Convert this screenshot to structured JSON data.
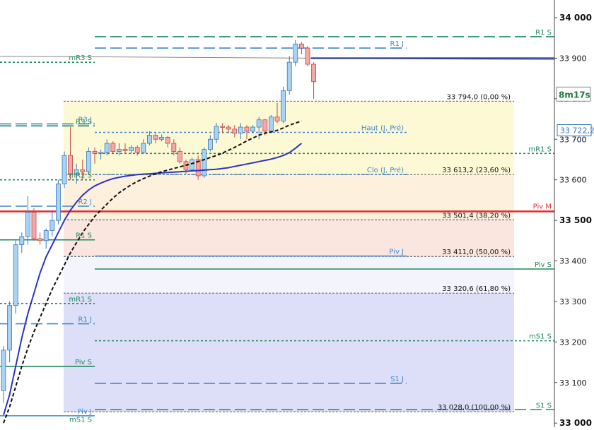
{
  "chart_data": {
    "type": "candlestick",
    "y_axis": {
      "position": "right",
      "min": 32990,
      "max": 34030,
      "ticks": [
        {
          "value": 34000,
          "label": "34 000",
          "bold": true
        },
        {
          "value": 33900,
          "label": "33 900",
          "bold": false
        },
        {
          "value": 33800,
          "label": "33 800",
          "bold": false
        },
        {
          "value": 33700,
          "label": "33 700",
          "bold": false
        },
        {
          "value": 33600,
          "label": "33 600",
          "bold": false
        },
        {
          "value": 33500,
          "label": "33 500",
          "bold": true
        },
        {
          "value": 33400,
          "label": "33 400",
          "bold": false
        },
        {
          "value": 33300,
          "label": "33 300",
          "bold": false
        },
        {
          "value": 33200,
          "label": "33 200",
          "bold": false
        },
        {
          "value": 33100,
          "label": "33 100",
          "bold": false
        },
        {
          "value": 33000,
          "label": "33 000",
          "bold": true
        }
      ]
    },
    "timer_badge": {
      "label": "8m17s",
      "value": 33794
    },
    "price_badge": {
      "label": "33 722,2",
      "value": 33722.2
    },
    "fib_zones": [
      {
        "from": 33794.0,
        "to": 33613.2,
        "color": "#fdf9d4"
      },
      {
        "from": 33613.2,
        "to": 33501.4,
        "color": "#fdf1de"
      },
      {
        "from": 33501.4,
        "to": 33411.0,
        "color": "#fbe6df"
      },
      {
        "from": 33411.0,
        "to": 33320.6,
        "color": "#f3f4fc"
      },
      {
        "from": 33320.6,
        "to": 33028.0,
        "color": "#dcdff7"
      }
    ],
    "fib_levels": [
      {
        "value": 33794.0,
        "label": "33 794,0 (0,00 %)"
      },
      {
        "value": 33613.2,
        "label": "33 613,2 (23,60 %)"
      },
      {
        "value": 33501.4,
        "label": "33 501,4 (38,20 %)"
      },
      {
        "value": 33411.0,
        "label": "33 411,0 (50,00 %)"
      },
      {
        "value": 33320.6,
        "label": "33 320,6 (61,80 %)"
      },
      {
        "value": 33028.0,
        "label": "33 028,0 (100,00 %)"
      }
    ],
    "pivot_lines": [
      {
        "label": "R1 S",
        "value": 33953,
        "color": "#1f8a5c",
        "style": "dash-long",
        "span": "right"
      },
      {
        "label": "R1 J",
        "value": 33925,
        "color": "#3f86d6",
        "style": "dash-long",
        "span": "mid"
      },
      {
        "label": "mR3 S",
        "value": 33890,
        "color": "#1f8a5c",
        "style": "dot",
        "span": "left"
      },
      {
        "label": "R3 J",
        "value": 33738,
        "color": "#3f86d6",
        "style": "dash-long",
        "span": "left"
      },
      {
        "label": "R3 S",
        "value": 33733,
        "color": "#1f8a5c",
        "style": "dash-long",
        "span": "left"
      },
      {
        "label": "Haut (J, Pré)",
        "value": 33717,
        "color": "#3f86d6",
        "style": "dot",
        "span": "mid"
      },
      {
        "label": "mR1 S",
        "value": 33665,
        "color": "#1f8a5c",
        "style": "dot",
        "span": "right"
      },
      {
        "label": "mR2 S",
        "value": 33600,
        "color": "#1f8a5c",
        "style": "dot",
        "span": "left"
      },
      {
        "label": "Clo (J, Pré)",
        "value": 33613,
        "color": "#3f86d6",
        "style": "dot",
        "span": "mid"
      },
      {
        "label": "R2 J",
        "value": 33535,
        "color": "#3f86d6",
        "style": "dash-long",
        "span": "left"
      },
      {
        "label": "R1 S",
        "value": 33452,
        "color": "#1f8a5c",
        "style": "solid",
        "span": "left"
      },
      {
        "label": "Piv J",
        "value": 33412,
        "color": "#3f86d6",
        "style": "solid",
        "span": "mid"
      },
      {
        "label": "Piv S",
        "value": 33380,
        "color": "#1f8a5c",
        "style": "solid",
        "span": "right"
      },
      {
        "label": "mR1 S",
        "value": 33295,
        "color": "#1f8a5c",
        "style": "dot",
        "span": "left"
      },
      {
        "label": "R1 J",
        "value": 33245,
        "color": "#3f86d6",
        "style": "dash-long",
        "span": "left"
      },
      {
        "label": "mS1 S",
        "value": 33203,
        "color": "#1f8a5c",
        "style": "dot",
        "span": "right"
      },
      {
        "label": "Piv S",
        "value": 33140,
        "color": "#1f8a5c",
        "style": "solid",
        "span": "left"
      },
      {
        "label": "S1 J",
        "value": 33098,
        "color": "#3f86d6",
        "style": "dash-long",
        "span": "mid"
      },
      {
        "label": "S1 S",
        "value": 33033,
        "color": "#1f8a5c",
        "style": "dash-long",
        "span": "right"
      },
      {
        "label": "Piv J",
        "value": 33018,
        "color": "#3f86d6",
        "style": "solid",
        "span": "left"
      },
      {
        "label": "mS1 S",
        "value": 32998,
        "color": "#1f8a5c",
        "style": "none",
        "span": "left"
      }
    ],
    "main_pivot": {
      "label": "Piv M",
      "value": 33522,
      "color": "#e03030"
    },
    "upper_grey_line": {
      "value": 33898,
      "color": "#888888"
    },
    "close_line": {
      "value": 33900,
      "color": "#1a2a8a"
    },
    "candles": [
      {
        "o": 33080,
        "h": 33190,
        "l": 33050,
        "c": 33180
      },
      {
        "o": 33180,
        "h": 33300,
        "l": 33150,
        "c": 33290
      },
      {
        "o": 33290,
        "h": 33450,
        "l": 33270,
        "c": 33440
      },
      {
        "o": 33440,
        "h": 33470,
        "l": 33420,
        "c": 33460
      },
      {
        "o": 33460,
        "h": 33560,
        "l": 33440,
        "c": 33520
      },
      {
        "o": 33520,
        "h": 33530,
        "l": 33450,
        "c": 33455
      },
      {
        "o": 33455,
        "h": 33470,
        "l": 33440,
        "c": 33450
      },
      {
        "o": 33450,
        "h": 33480,
        "l": 33430,
        "c": 33475
      },
      {
        "o": 33475,
        "h": 33520,
        "l": 33460,
        "c": 33500
      },
      {
        "o": 33500,
        "h": 33600,
        "l": 33490,
        "c": 33590
      },
      {
        "o": 33590,
        "h": 33670,
        "l": 33580,
        "c": 33660
      },
      {
        "o": 33660,
        "h": 33730,
        "l": 33600,
        "c": 33615
      },
      {
        "o": 33615,
        "h": 33640,
        "l": 33590,
        "c": 33625
      },
      {
        "o": 33625,
        "h": 33650,
        "l": 33600,
        "c": 33620
      },
      {
        "o": 33620,
        "h": 33680,
        "l": 33615,
        "c": 33670
      },
      {
        "o": 33670,
        "h": 33680,
        "l": 33640,
        "c": 33665
      },
      {
        "o": 33665,
        "h": 33675,
        "l": 33650,
        "c": 33668
      },
      {
        "o": 33668,
        "h": 33700,
        "l": 33660,
        "c": 33690
      },
      {
        "o": 33690,
        "h": 33695,
        "l": 33665,
        "c": 33670
      },
      {
        "o": 33670,
        "h": 33690,
        "l": 33660,
        "c": 33675
      },
      {
        "o": 33675,
        "h": 33690,
        "l": 33665,
        "c": 33672
      },
      {
        "o": 33672,
        "h": 33685,
        "l": 33665,
        "c": 33680
      },
      {
        "o": 33680,
        "h": 33685,
        "l": 33660,
        "c": 33668
      },
      {
        "o": 33668,
        "h": 33700,
        "l": 33665,
        "c": 33690
      },
      {
        "o": 33690,
        "h": 33720,
        "l": 33685,
        "c": 33710
      },
      {
        "o": 33710,
        "h": 33715,
        "l": 33690,
        "c": 33700
      },
      {
        "o": 33700,
        "h": 33712,
        "l": 33695,
        "c": 33705
      },
      {
        "o": 33705,
        "h": 33708,
        "l": 33680,
        "c": 33690
      },
      {
        "o": 33690,
        "h": 33700,
        "l": 33660,
        "c": 33670
      },
      {
        "o": 33670,
        "h": 33680,
        "l": 33640,
        "c": 33645
      },
      {
        "o": 33645,
        "h": 33650,
        "l": 33615,
        "c": 33625
      },
      {
        "o": 33625,
        "h": 33655,
        "l": 33620,
        "c": 33650
      },
      {
        "o": 33650,
        "h": 33660,
        "l": 33600,
        "c": 33610
      },
      {
        "o": 33610,
        "h": 33680,
        "l": 33605,
        "c": 33675
      },
      {
        "o": 33675,
        "h": 33710,
        "l": 33670,
        "c": 33700
      },
      {
        "o": 33700,
        "h": 33740,
        "l": 33690,
        "c": 33732
      },
      {
        "o": 33732,
        "h": 33740,
        "l": 33715,
        "c": 33730
      },
      {
        "o": 33730,
        "h": 33735,
        "l": 33715,
        "c": 33725
      },
      {
        "o": 33725,
        "h": 33735,
        "l": 33705,
        "c": 33715
      },
      {
        "o": 33715,
        "h": 33740,
        "l": 33700,
        "c": 33730
      },
      {
        "o": 33730,
        "h": 33735,
        "l": 33700,
        "c": 33720
      },
      {
        "o": 33720,
        "h": 33735,
        "l": 33715,
        "c": 33730
      },
      {
        "o": 33730,
        "h": 33755,
        "l": 33700,
        "c": 33748
      },
      {
        "o": 33748,
        "h": 33750,
        "l": 33710,
        "c": 33720
      },
      {
        "o": 33720,
        "h": 33760,
        "l": 33715,
        "c": 33755
      },
      {
        "o": 33755,
        "h": 33790,
        "l": 33740,
        "c": 33745
      },
      {
        "o": 33745,
        "h": 33830,
        "l": 33740,
        "c": 33820
      },
      {
        "o": 33820,
        "h": 33905,
        "l": 33810,
        "c": 33890
      },
      {
        "o": 33890,
        "h": 33945,
        "l": 33880,
        "c": 33935
      },
      {
        "o": 33935,
        "h": 33940,
        "l": 33910,
        "c": 33925
      },
      {
        "o": 33925,
        "h": 33930,
        "l": 33880,
        "c": 33885
      },
      {
        "o": 33885,
        "h": 33890,
        "l": 33800,
        "c": 33842
      }
    ],
    "ma_blue": {
      "color": "#2b35c4",
      "values": [
        33020,
        33070,
        33140,
        33210,
        33270,
        33320,
        33370,
        33410,
        33440,
        33470,
        33500,
        33525,
        33545,
        33562,
        33575,
        33585,
        33592,
        33598,
        33603,
        33606,
        33609,
        33611,
        33613,
        33614,
        33615,
        33616,
        33617,
        33618,
        33619,
        33620,
        33621,
        33622,
        33623,
        33624,
        33625,
        33626,
        33628,
        33630,
        33633,
        33636,
        33639,
        33642,
        33645,
        33648,
        33651,
        33655,
        33660,
        33667,
        33678,
        33690
      ]
    },
    "ma_black_dashed": {
      "color": "#111111",
      "values": [
        33000,
        33040,
        33090,
        33140,
        33185,
        33225,
        33260,
        33295,
        33330,
        33360,
        33390,
        33420,
        33445,
        33470,
        33490,
        33510,
        33525,
        33540,
        33555,
        33568,
        33578,
        33588,
        33596,
        33603,
        33609,
        33615,
        33620,
        33624,
        33628,
        33632,
        33636,
        33640,
        33645,
        33650,
        33655,
        33660,
        33666,
        33673,
        33680,
        33688,
        33696,
        33703,
        33710,
        33715,
        33718,
        33722,
        33728,
        33735,
        33740,
        33745
      ]
    }
  }
}
